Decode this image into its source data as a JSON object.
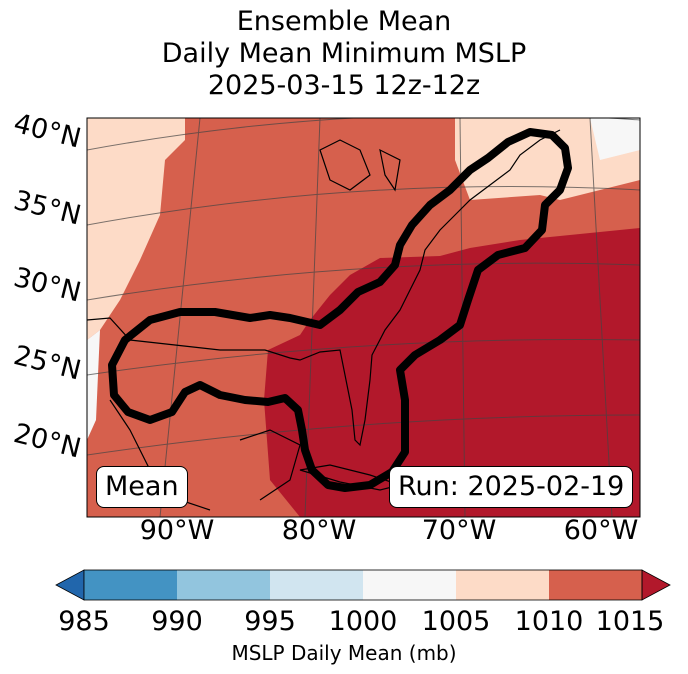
{
  "title": {
    "line1": "Ensemble Mean",
    "line2": "Daily Mean Minimum MSLP",
    "line3": "2025-03-15 12z-12z"
  },
  "panel": {
    "left_label": "Mean",
    "right_label": "Run: 2025-02-19"
  },
  "axes": {
    "lat_labels": [
      "40°N",
      "35°N",
      "30°N",
      "25°N",
      "20°N"
    ],
    "lon_labels": [
      "90°W",
      "80°W",
      "70°W",
      "60°W"
    ]
  },
  "colorbar": {
    "label": "MSLP Daily Mean (mb)",
    "ticks": [
      "985",
      "990",
      "995",
      "1000",
      "1005",
      "1010",
      "1015"
    ],
    "colors": {
      "under": "#2166ac",
      "c985_990": "#4393c3",
      "c990_995": "#92c5de",
      "c995_1000": "#d1e5f0",
      "c1000_1005": "#f7f7f7",
      "c1005_1010": "#fddbc7",
      "c1010_1015": "#d6604d",
      "over": "#b2182b"
    }
  },
  "legend_regions": {
    "contour_color": "#000000"
  }
}
